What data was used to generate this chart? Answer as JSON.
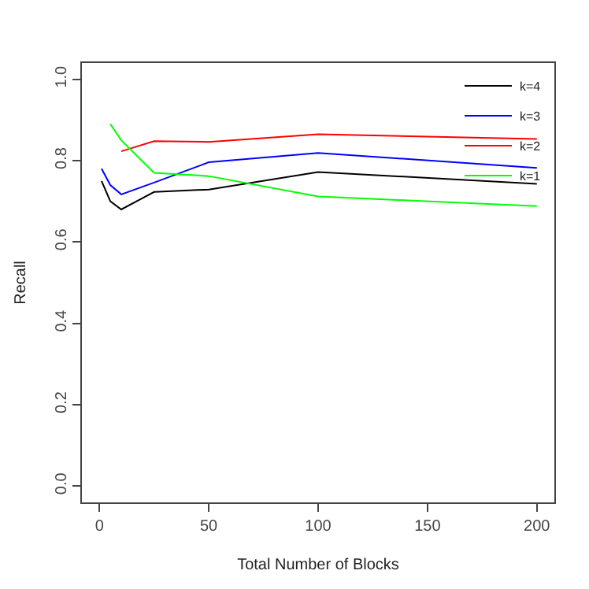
{
  "chart_data": {
    "type": "line",
    "xlabel": "Total Number of Blocks",
    "ylabel": "Recall",
    "x": [
      1,
      5,
      10,
      25,
      50,
      100,
      200
    ],
    "series": [
      {
        "name": "k=4",
        "color": "#000000",
        "values": [
          0.75,
          0.7,
          0.68,
          0.723,
          0.729,
          0.772,
          0.743
        ]
      },
      {
        "name": "k=3",
        "color": "#0000ff",
        "values": [
          0.78,
          0.74,
          0.717,
          0.746,
          0.796,
          0.819,
          0.782
        ]
      },
      {
        "name": "k=2",
        "color": "#ff0000",
        "values": [
          null,
          null,
          0.823,
          0.848,
          0.846,
          0.865,
          0.853
        ]
      },
      {
        "name": "k=1",
        "color": "#00ff00",
        "values": [
          null,
          0.89,
          0.85,
          0.77,
          0.762,
          0.712,
          0.688
        ]
      }
    ],
    "xlim": [
      -8,
      208
    ],
    "xticks": [
      0,
      50,
      100,
      150,
      200
    ],
    "ylim": [
      -0.04,
      1.04
    ],
    "yticks": [
      {
        "value": 0,
        "label": "0.0"
      },
      {
        "value": 0.2,
        "label": "0.2"
      },
      {
        "value": 0.4,
        "label": "0.4"
      },
      {
        "value": 0.6,
        "label": "0.6"
      },
      {
        "value": 0.8,
        "label": "0.8"
      },
      {
        "value": 1.0,
        "label": "1.0"
      }
    ],
    "legend": "top right",
    "marker": "none",
    "line_style": "solid"
  }
}
